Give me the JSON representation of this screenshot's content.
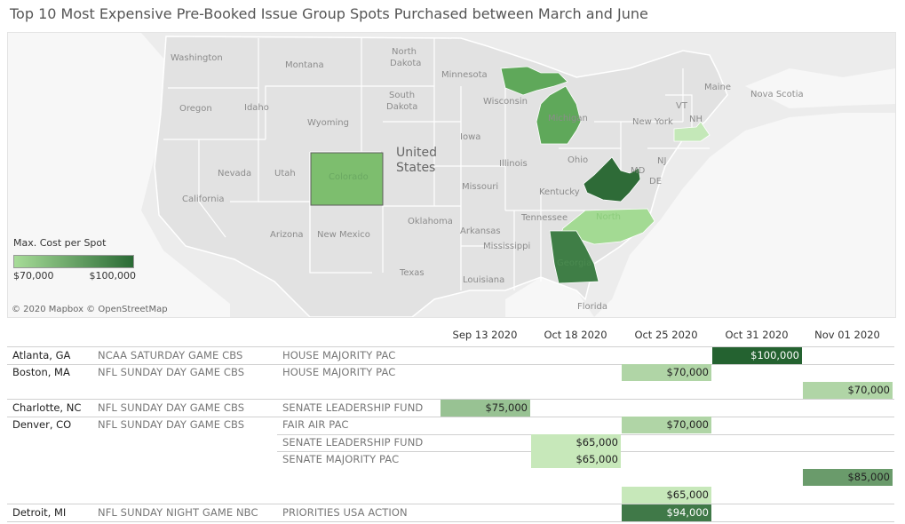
{
  "title": "Top 10 Most Expensive Pre-Booked Issue Group Spots Purchased between March and June",
  "map": {
    "legend_title": "Max. Cost per Spot",
    "legend_min": "$70,000",
    "legend_max": "$100,000",
    "color_low": "#a7dc98",
    "color_high": "#2a6a35",
    "credit": "© 2020 Mapbox © OpenStreetMap",
    "country_label": [
      "United",
      "States"
    ],
    "labels": {
      "washington": "Washington",
      "montana": "Montana",
      "north_dakota_1": "North",
      "north_dakota_2": "Dakota",
      "minnesota": "Minnesota",
      "oregon": "Oregon",
      "idaho": "Idaho",
      "south_dakota_1": "South",
      "south_dakota_2": "Dakota",
      "wisconsin": "Wisconsin",
      "wyoming": "Wyoming",
      "iowa": "Iowa",
      "nevada": "Nevada",
      "utah": "Utah",
      "illinois": "Illinois",
      "ohio": "Ohio",
      "california": "California",
      "missouri": "Missouri",
      "kentucky": "Kentucky",
      "oklahoma": "Oklahoma",
      "tennessee": "Tennessee",
      "arizona": "Arizona",
      "new_mexico": "New Mexico",
      "arkansas": "Arkansas",
      "mississippi": "Mississippi",
      "texas": "Texas",
      "louisiana": "Louisiana",
      "florida": "Florida",
      "maine": "Maine",
      "nova_scotia": "Nova Scotia",
      "new_york": "New York",
      "vt": "VT",
      "nh": "NH",
      "nj": "NJ",
      "de": "DE",
      "md": "MD",
      "michigan": "Michigan",
      "colorado": "Colorado",
      "north_carolina": "North",
      "georgia": "Georgia"
    },
    "state_values": {
      "Georgia": 100000,
      "Massachusetts": 70000,
      "North Carolina": 75000,
      "Colorado": 85000,
      "Michigan": 94000,
      "West Virginia": 100000
    }
  },
  "table": {
    "columns": [
      "Sep 13 2020",
      "Oct 18 2020",
      "Oct 25 2020",
      "Oct 31 2020",
      "Nov 01 2020"
    ],
    "cities": [
      "Atlanta, GA",
      "Boston, MA",
      "Charlotte, NC",
      "Denver, CO",
      "Detroit, MI"
    ],
    "programs": [
      "NCAA SATURDAY GAME CBS",
      "NFL SUNDAY DAY GAME CBS",
      "NFL SUNDAY DAY GAME CBS",
      "NFL SUNDAY DAY GAME CBS",
      "NFL SUNDAY NIGHT GAME NBC"
    ],
    "groups": [
      "HOUSE MAJORITY PAC",
      "HOUSE MAJORITY PAC",
      "SENATE LEADERSHIP FUND",
      "FAIR AIR PAC",
      "SENATE LEADERSHIP FUND",
      "SENATE MAJORITY PAC",
      "PRIORITIES USA ACTION"
    ]
  },
  "chart_data": {
    "type": "table",
    "title": "Top 10 Most Expensive Pre-Booked Issue Group Spots Purchased between March and June",
    "legend": "Max. Cost per Spot",
    "color_range": [
      "$70,000",
      "$100,000"
    ],
    "columns": [
      "Sep 13 2020",
      "Oct 18 2020",
      "Oct 25 2020",
      "Oct 31 2020",
      "Nov 01 2020"
    ],
    "cells": [
      {
        "row": 0,
        "col": 3,
        "value": 100000,
        "label": "$100,000"
      },
      {
        "row": 1,
        "col": 2,
        "value": 70000,
        "label": "$70,000"
      },
      {
        "row": 2,
        "col": 4,
        "value": 70000,
        "label": "$70,000"
      },
      {
        "row": 3,
        "col": 0,
        "value": 75000,
        "label": "$75,000"
      },
      {
        "row": 4,
        "col": 2,
        "value": 70000,
        "label": "$70,000"
      },
      {
        "row": 5,
        "col": 1,
        "value": 65000,
        "label": "$65,000"
      },
      {
        "row": 6,
        "col": 1,
        "value": 65000,
        "label": "$65,000"
      },
      {
        "row": 7,
        "col": 4,
        "value": 85000,
        "label": "$85,000"
      },
      {
        "row": 8,
        "col": 2,
        "value": 65000,
        "label": "$65,000"
      },
      {
        "row": 9,
        "col": 2,
        "value": 94000,
        "label": "$94,000"
      }
    ]
  }
}
